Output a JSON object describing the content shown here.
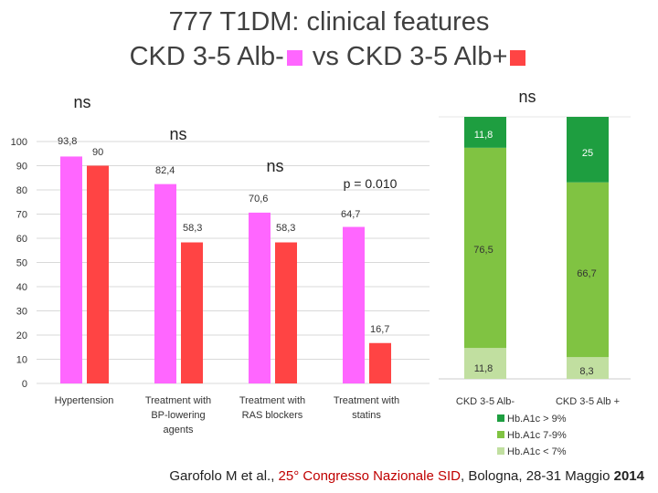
{
  "title": {
    "line1": "777 T1DM: clinical features",
    "line2a": "CKD 3-5 Alb-",
    "line2b": "vs CKD 3-5 Alb+"
  },
  "colors": {
    "alb_neg": "#ff66ff",
    "alb_pos": "#ff4444",
    "hba1c_high": "#1e9e40",
    "hba1c_mid": "#80c342",
    "hba1c_low": "#c1dfa0"
  },
  "chart_data": [
    {
      "type": "bar",
      "ylim": [
        0,
        100
      ],
      "yticks": [
        "0",
        "10",
        "20",
        "30",
        "40",
        "50",
        "60",
        "70",
        "80",
        "90",
        "100"
      ],
      "categories": [
        [
          "Hypertension"
        ],
        [
          "Treatment with",
          "BP-lowering",
          "agents"
        ],
        [
          "Treatment with",
          "RAS blockers"
        ],
        [
          "Treatment with",
          "statins"
        ]
      ],
      "series": [
        {
          "name": "CKD 3-5 Alb-",
          "values": [
            93.8,
            82.4,
            70.6,
            64.7
          ],
          "labels": [
            "93,8",
            "82,4",
            "70,6",
            "64,7"
          ]
        },
        {
          "name": "CKD 3-5 Alb+",
          "values": [
            90,
            58.3,
            58.3,
            16.7
          ],
          "labels": [
            "90",
            "58,3",
            "58,3",
            "16,7"
          ]
        }
      ],
      "annotations": [
        "ns",
        "ns",
        "ns",
        "p = 0.010"
      ]
    },
    {
      "type": "stacked_bar",
      "categories": [
        "CKD 3-5 Alb-",
        "CKD 3-5 Alb +"
      ],
      "series": [
        {
          "name": "Hb.A1c < 7%",
          "values": [
            11.8,
            8.3
          ],
          "labels": [
            "11,8",
            "8,3"
          ]
        },
        {
          "name": "Hb.A1c 7-9%",
          "values": [
            76.5,
            66.7
          ],
          "labels": [
            "76,5",
            "66,7"
          ]
        },
        {
          "name": "Hb.A1c > 9%",
          "values": [
            11.8,
            25
          ],
          "labels": [
            "11,8",
            "25"
          ]
        }
      ],
      "legend": [
        "Hb.A1c > 9%",
        "Hb.A1c 7-9%",
        "Hb.A1c < 7%"
      ],
      "annotation": "ns"
    }
  ],
  "footer": {
    "author": "Garofolo M et al., ",
    "congress": "25° Congresso Nazionale SID",
    "place": ", Bologna, 28-31 Maggio ",
    "year": "2014"
  }
}
